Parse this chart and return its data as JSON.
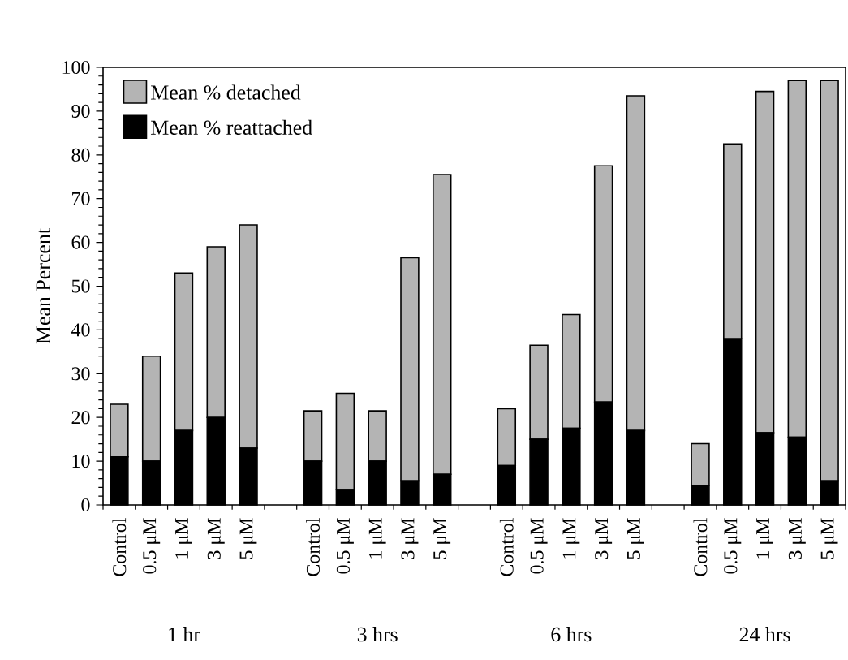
{
  "chart_data": {
    "type": "bar",
    "stacked": true,
    "ylabel": "Mean Percent",
    "categories": [
      "Control",
      "0.5 μM",
      "1 μM",
      "3 μM",
      "5 μM",
      null,
      "Control",
      "0.5 μM",
      "1 μM",
      "3 μM",
      "5 μM",
      null,
      "Control",
      "0.5 μM",
      "1 μM",
      "3 μM",
      "5 μM",
      null,
      "Control",
      "0.5 μM",
      "1 μM",
      "3 μM",
      "5 μM"
    ],
    "series": [
      {
        "name": "Mean % reattached",
        "color": "#000000",
        "values": [
          11,
          10,
          17,
          20,
          13,
          null,
          10,
          3.5,
          10,
          5.5,
          7,
          null,
          9,
          15,
          17.5,
          23.5,
          17,
          null,
          4.5,
          38,
          16.5,
          15.5,
          5.5
        ]
      },
      {
        "name": "Mean % detached",
        "color": "#b4b4b4",
        "values": [
          12,
          24,
          36,
          39,
          51,
          null,
          11.5,
          22,
          11.5,
          51,
          68.5,
          null,
          13,
          21.5,
          26,
          54,
          76.5,
          null,
          9.5,
          44.5,
          78,
          81.5,
          91.5
        ]
      }
    ],
    "ylim": [
      0,
      100
    ],
    "yticks": [
      0,
      10,
      20,
      30,
      40,
      50,
      60,
      70,
      80,
      90,
      100
    ],
    "legend": "top left",
    "annotations": [
      "1 hr",
      "3 hrs",
      "6 hrs",
      "24 hrs"
    ]
  }
}
